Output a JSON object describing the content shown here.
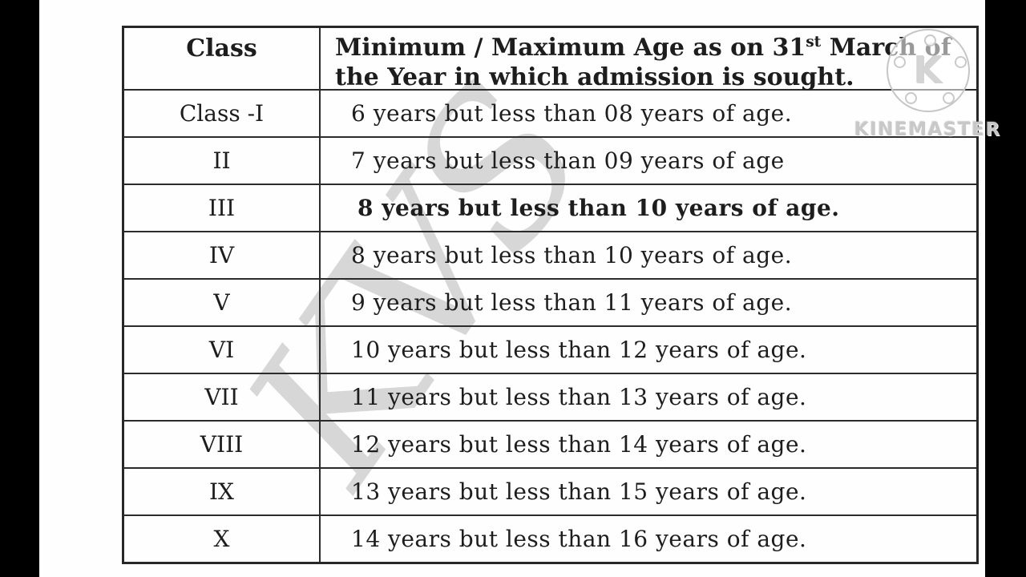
{
  "colors": {
    "page_background": "#fefefe",
    "letterbox": "#000000",
    "table_border": "#2b2b2b",
    "text": "#1d1d1d",
    "kvs_watermark": "#d7d7d7",
    "kinemaster_watermark": "#c8c8c8"
  },
  "table": {
    "header": {
      "col1": "Class",
      "col2_prefix": "Minimum / Maximum Age as on 31",
      "col2_sup": "st",
      "col2_suffix": " March of the Year in which admission is sought."
    },
    "rows": [
      {
        "class": "Class -I",
        "age": "6 years but less than 08 years of age.",
        "bold": false
      },
      {
        "class": "II",
        "age": "7 years but less than 09 years of age",
        "bold": false
      },
      {
        "class": "III",
        "age": "8 years but less than 10 years of age.",
        "bold": true
      },
      {
        "class": "IV",
        "age": "8 years but less than 10 years of age.",
        "bold": false
      },
      {
        "class": "V",
        "age": "9 years but less than 11 years of age.",
        "bold": false
      },
      {
        "class": "VI",
        "age": "10 years but less than 12 years of age.",
        "bold": false
      },
      {
        "class": "VII",
        "age": "11 years but less than 13 years of age.",
        "bold": false
      },
      {
        "class": "VIII",
        "age": "12 years but less than 14 years of age.",
        "bold": false
      },
      {
        "class": "IX",
        "age": "13 years but less than 15 years of age.",
        "bold": false
      },
      {
        "class": "X",
        "age": "14 years but less than 16 years of age.",
        "bold": false
      }
    ]
  },
  "watermarks": {
    "kvs_text": "KVS",
    "kinemaster_logo_letter": "K",
    "kinemaster_text": "KINEMASTER"
  }
}
